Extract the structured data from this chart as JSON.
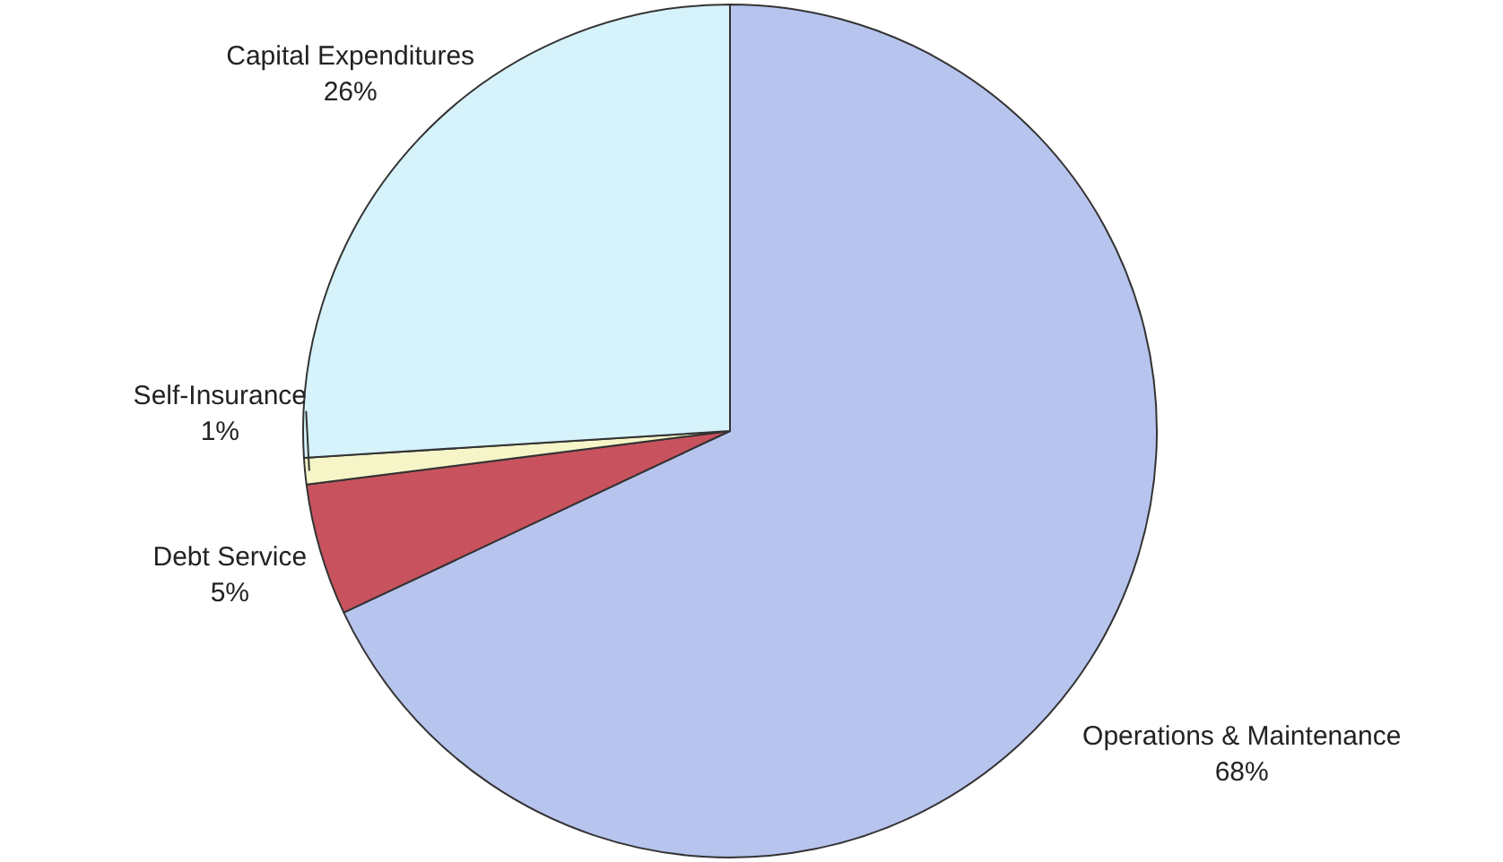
{
  "chart_data": {
    "type": "pie",
    "categories": [
      "Operations & Maintenance",
      "Debt Service",
      "Self-Insurance",
      "Capital Expenditures"
    ],
    "values": [
      68,
      5,
      1,
      26
    ],
    "value_labels": [
      "68%",
      "5%",
      "1%",
      "26%"
    ],
    "colors": [
      "#b7c4ee",
      "#c8525e",
      "#f5f5c8",
      "#d6f2fb"
    ]
  }
}
